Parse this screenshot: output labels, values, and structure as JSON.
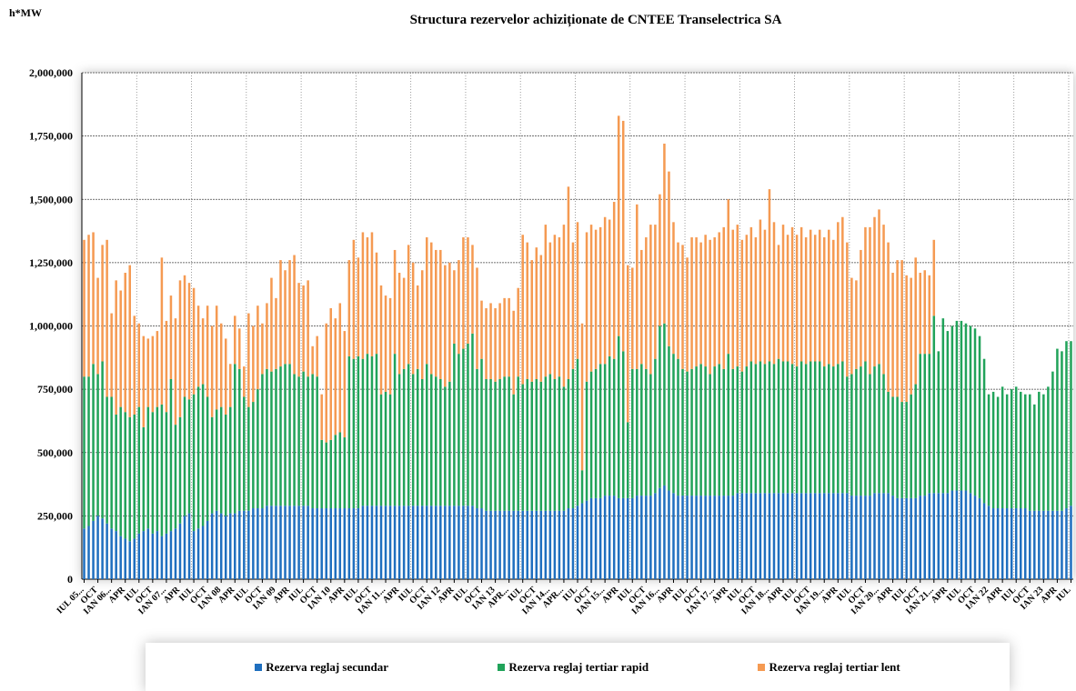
{
  "chart_data": {
    "type": "stacked_bar",
    "title": "Structura rezervelor achiziționate de CNTEE Transelectrica SA",
    "y_label": "h*MW",
    "ylim": [
      0,
      2000000
    ],
    "yticks": [
      0,
      {
        "value": 250000,
        "label": "250,000"
      },
      {
        "value": 500000,
        "label": "500,000"
      },
      {
        "value": 750000,
        "label": "750,000"
      },
      {
        "value": 1000000,
        "label": "1,000,000"
      },
      {
        "value": 1250000,
        "label": "1,250,000"
      },
      {
        "value": 1500000,
        "label": "1,500,000"
      },
      {
        "value": 1750000,
        "label": "1,750,000"
      },
      {
        "value": 2000000,
        "label": "2,000,000"
      }
    ],
    "grid": true,
    "legend": "bottom",
    "categories": [
      "IUL 05...",
      null,
      null,
      "OCT",
      null,
      null,
      "IAN 06...",
      null,
      null,
      "APR",
      null,
      null,
      "IUL",
      null,
      null,
      "OCT",
      null,
      null,
      "IAN 07...",
      null,
      null,
      "APR",
      null,
      null,
      "IUL",
      null,
      null,
      "OCT",
      null,
      null,
      "IAN 08",
      null,
      null,
      "APR",
      null,
      null,
      "IUL",
      null,
      null,
      "OCT",
      null,
      null,
      "IAN 09",
      null,
      null,
      "APR",
      null,
      null,
      "IUL",
      null,
      null,
      "OCT",
      null,
      null,
      "IAN 10",
      null,
      null,
      "APR",
      null,
      null,
      "IUL",
      null,
      null,
      "OCT",
      null,
      null,
      "IAN 11...",
      null,
      null,
      "APR",
      null,
      null,
      "IUL",
      null,
      null,
      "OCT",
      null,
      null,
      "IAN 12",
      null,
      null,
      "APR",
      null,
      null,
      "IUL",
      null,
      null,
      "OCT",
      null,
      null,
      "IAN 13",
      null,
      null,
      "APR...",
      null,
      null,
      "IUL",
      null,
      null,
      "OCT",
      null,
      null,
      "IAN 14...",
      null,
      null,
      "APR...",
      null,
      null,
      "IUL",
      null,
      null,
      "OCT",
      null,
      null,
      "IAN 15...",
      null,
      null,
      "APR",
      null,
      null,
      "IUL",
      null,
      null,
      "OCT",
      null,
      null,
      "IAN 16...",
      null,
      null,
      "APR",
      null,
      null,
      "IUL",
      null,
      null,
      "OCT",
      null,
      null,
      "IAN 17...",
      null,
      null,
      "APR",
      null,
      null,
      "IUL",
      null,
      null,
      "OCT",
      null,
      null,
      "IAN 18...",
      null,
      null,
      "APR",
      null,
      null,
      "IUL",
      null,
      null,
      "OCT",
      null,
      null,
      "IAN 19...",
      null,
      null,
      "APR",
      null,
      null,
      "IUL",
      null,
      null,
      "OCT",
      null,
      null,
      "IAN 20...",
      null,
      null,
      "APR",
      null,
      null,
      "IUL",
      null,
      null,
      "OCT",
      null,
      null,
      "IAN 21...",
      null,
      null,
      "APR",
      null,
      null,
      "IUL",
      null,
      null,
      "OCT",
      null,
      null,
      "IAN 22",
      null,
      null,
      "APR",
      null,
      null,
      "IUL",
      null,
      null,
      "OCT",
      null,
      null,
      "IAN 23",
      null,
      null,
      "APR",
      null,
      null,
      "IUL"
    ],
    "series": [
      {
        "name": "Rezerva reglaj secundar",
        "color": "#1f6fbf",
        "values": [
          200000,
          210000,
          230000,
          250000,
          240000,
          220000,
          200000,
          190000,
          170000,
          160000,
          150000,
          160000,
          180000,
          190000,
          200000,
          180000,
          190000,
          170000,
          180000,
          190000,
          200000,
          220000,
          250000,
          260000,
          190000,
          200000,
          210000,
          230000,
          260000,
          270000,
          260000,
          250000,
          260000,
          260000,
          270000,
          270000,
          270000,
          280000,
          280000,
          280000,
          290000,
          290000,
          290000,
          290000,
          290000,
          290000,
          290000,
          290000,
          290000,
          290000,
          280000,
          280000,
          280000,
          280000,
          280000,
          280000,
          280000,
          280000,
          280000,
          280000,
          280000,
          290000,
          290000,
          290000,
          290000,
          290000,
          290000,
          290000,
          290000,
          290000,
          290000,
          290000,
          290000,
          290000,
          290000,
          290000,
          290000,
          290000,
          290000,
          290000,
          290000,
          290000,
          290000,
          290000,
          290000,
          290000,
          280000,
          280000,
          270000,
          270000,
          270000,
          270000,
          270000,
          270000,
          270000,
          270000,
          270000,
          270000,
          270000,
          270000,
          270000,
          270000,
          270000,
          270000,
          270000,
          270000,
          280000,
          280000,
          290000,
          300000,
          310000,
          320000,
          320000,
          320000,
          330000,
          330000,
          330000,
          320000,
          320000,
          320000,
          320000,
          330000,
          330000,
          330000,
          330000,
          340000,
          360000,
          370000,
          350000,
          340000,
          330000,
          330000,
          330000,
          330000,
          330000,
          330000,
          330000,
          330000,
          330000,
          330000,
          330000,
          330000,
          330000,
          340000,
          340000,
          340000,
          340000,
          340000,
          340000,
          340000,
          340000,
          340000,
          340000,
          340000,
          340000,
          340000,
          340000,
          340000,
          340000,
          340000,
          340000,
          340000,
          340000,
          340000,
          340000,
          340000,
          340000,
          340000,
          330000,
          330000,
          330000,
          330000,
          330000,
          340000,
          340000,
          340000,
          340000,
          330000,
          320000,
          320000,
          320000,
          320000,
          320000,
          330000,
          330000,
          340000,
          340000,
          340000,
          340000,
          340000,
          350000,
          350000,
          350000,
          350000,
          340000,
          330000,
          320000,
          300000,
          290000,
          280000,
          280000,
          280000,
          280000,
          280000,
          280000,
          280000,
          280000,
          270000,
          270000,
          270000,
          270000,
          270000,
          270000,
          270000,
          270000,
          280000,
          290000
        ]
      },
      {
        "name": "Rezerva reglaj tertiar rapid",
        "color": "#21a35a",
        "values": [
          600000,
          590000,
          620000,
          560000,
          620000,
          500000,
          520000,
          460000,
          510000,
          500000,
          490000,
          490000,
          500000,
          410000,
          480000,
          480000,
          490000,
          520000,
          480000,
          600000,
          410000,
          420000,
          470000,
          450000,
          540000,
          560000,
          560000,
          490000,
          380000,
          400000,
          420000,
          400000,
          420000,
          590000,
          560000,
          450000,
          410000,
          420000,
          470000,
          530000,
          540000,
          530000,
          540000,
          550000,
          560000,
          560000,
          520000,
          510000,
          530000,
          510000,
          530000,
          520000,
          270000,
          260000,
          270000,
          290000,
          300000,
          280000,
          600000,
          590000,
          600000,
          580000,
          600000,
          590000,
          600000,
          440000,
          450000,
          440000,
          600000,
          520000,
          540000,
          560000,
          520000,
          540000,
          500000,
          560000,
          520000,
          510000,
          500000,
          470000,
          490000,
          640000,
          600000,
          620000,
          640000,
          680000,
          550000,
          590000,
          520000,
          520000,
          510000,
          520000,
          530000,
          530000,
          460000,
          530000,
          500000,
          520000,
          510000,
          520000,
          510000,
          530000,
          540000,
          520000,
          530000,
          490000,
          510000,
          550000,
          580000,
          130000,
          470000,
          500000,
          510000,
          530000,
          520000,
          550000,
          540000,
          640000,
          580000,
          300000,
          510000,
          500000,
          520000,
          500000,
          480000,
          530000,
          640000,
          640000,
          570000,
          550000,
          540000,
          500000,
          490000,
          500000,
          510000,
          520000,
          510000,
          480000,
          510000,
          520000,
          500000,
          560000,
          500000,
          500000,
          480000,
          500000,
          520000,
          510000,
          520000,
          510000,
          520000,
          510000,
          530000,
          520000,
          520000,
          510000,
          500000,
          520000,
          510000,
          520000,
          520000,
          520000,
          500000,
          510000,
          500000,
          510000,
          520000,
          460000,
          480000,
          500000,
          510000,
          530000,
          480000,
          500000,
          510000,
          470000,
          400000,
          390000,
          400000,
          380000,
          380000,
          410000,
          450000,
          560000,
          560000,
          550000,
          700000,
          560000,
          690000,
          640000,
          650000,
          670000,
          670000,
          660000,
          660000,
          660000,
          640000,
          570000,
          440000,
          460000,
          440000,
          480000,
          450000,
          470000,
          480000,
          460000,
          450000,
          460000,
          420000,
          470000,
          460000,
          490000,
          550000,
          640000,
          630000,
          660000,
          650000
        ]
      },
      {
        "name": "Rezerva reglaj tertiar lent",
        "color": "#f59a52",
        "values": [
          540000,
          560000,
          520000,
          380000,
          460000,
          620000,
          330000,
          530000,
          460000,
          550000,
          600000,
          390000,
          330000,
          360000,
          270000,
          300000,
          300000,
          580000,
          360000,
          330000,
          420000,
          540000,
          480000,
          460000,
          420000,
          320000,
          260000,
          360000,
          360000,
          410000,
          330000,
          300000,
          170000,
          190000,
          160000,
          120000,
          370000,
          300000,
          330000,
          200000,
          260000,
          370000,
          280000,
          420000,
          370000,
          410000,
          470000,
          370000,
          340000,
          380000,
          110000,
          160000,
          180000,
          470000,
          520000,
          460000,
          510000,
          420000,
          380000,
          470000,
          390000,
          500000,
          460000,
          490000,
          400000,
          430000,
          380000,
          380000,
          410000,
          400000,
          360000,
          470000,
          440000,
          330000,
          430000,
          500000,
          520000,
          500000,
          510000,
          480000,
          470000,
          290000,
          370000,
          440000,
          420000,
          350000,
          400000,
          230000,
          280000,
          300000,
          290000,
          300000,
          310000,
          310000,
          330000,
          350000,
          590000,
          540000,
          480000,
          520000,
          500000,
          600000,
          520000,
          570000,
          550000,
          640000,
          760000,
          500000,
          540000,
          580000,
          590000,
          580000,
          550000,
          540000,
          580000,
          540000,
          620000,
          870000,
          910000,
          620000,
          400000,
          650000,
          450000,
          520000,
          590000,
          530000,
          520000,
          710000,
          690000,
          520000,
          460000,
          490000,
          450000,
          520000,
          510000,
          480000,
          520000,
          530000,
          510000,
          520000,
          560000,
          610000,
          550000,
          560000,
          520000,
          520000,
          530000,
          500000,
          560000,
          530000,
          680000,
          560000,
          450000,
          540000,
          500000,
          540000,
          520000,
          530000,
          500000,
          520000,
          500000,
          520000,
          510000,
          530000,
          500000,
          560000,
          570000,
          530000,
          380000,
          350000,
          460000,
          530000,
          580000,
          590000,
          610000,
          590000,
          590000,
          490000,
          540000,
          560000,
          500000,
          460000,
          500000,
          320000,
          330000,
          310000,
          300000,
          0,
          0,
          0,
          0,
          0,
          0,
          0,
          0,
          0,
          0,
          0,
          0,
          0,
          0,
          0,
          0,
          0,
          0,
          0,
          0,
          0,
          0,
          0,
          0,
          0,
          0,
          0,
          0,
          0,
          0
        ]
      }
    ]
  }
}
